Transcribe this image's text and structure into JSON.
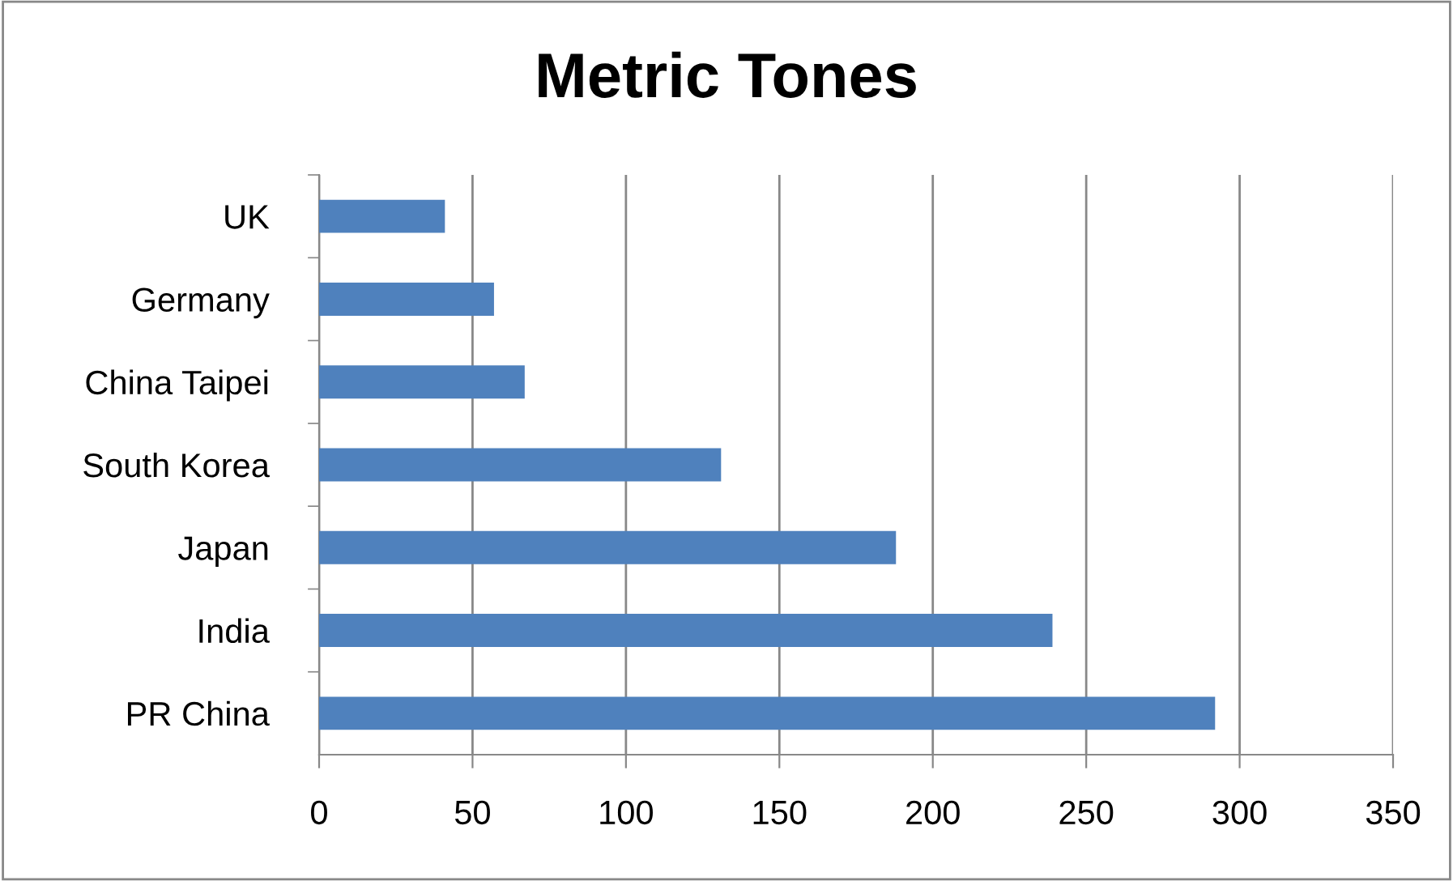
{
  "chart_data": {
    "type": "bar",
    "orientation": "horizontal",
    "title": "Metric Tones",
    "categories": [
      "UK",
      "Germany",
      "China Taipei",
      "South Korea",
      "Japan",
      "India",
      "PR China"
    ],
    "values": [
      41,
      57,
      67,
      131,
      188,
      239,
      292
    ],
    "color": "#4f81bd",
    "xlim": [
      0,
      350
    ],
    "xticks": [
      0,
      50,
      100,
      150,
      200,
      250,
      300,
      350
    ],
    "grid": "x",
    "legend": false
  }
}
